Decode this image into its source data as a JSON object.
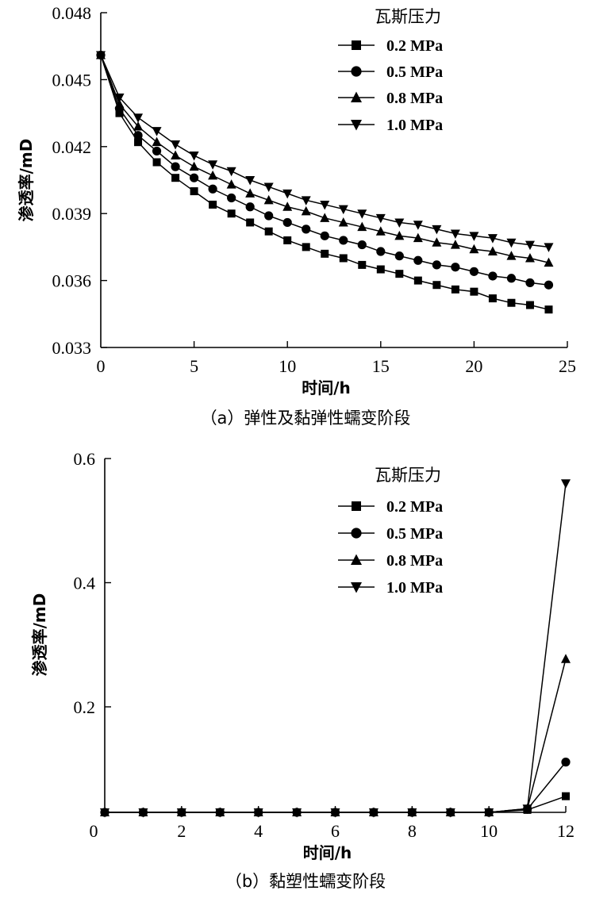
{
  "chart_data": [
    {
      "type": "line",
      "title": "",
      "caption": "（a）弹性及黏弹性蠕变阶段",
      "xlabel": "时间/h",
      "ylabel": "渗透率/mD",
      "xlim": [
        0,
        25
      ],
      "ylim": [
        0.033,
        0.048
      ],
      "xticks": [
        0,
        5,
        10,
        15,
        20,
        25
      ],
      "xtick_labels": [
        "0",
        "5",
        "10",
        "15",
        "20",
        "25"
      ],
      "yticks": [
        0.033,
        0.036,
        0.039,
        0.042,
        0.045,
        0.048
      ],
      "ytick_labels": [
        "0.033",
        "0.036",
        "0.039",
        "0.042",
        "0.045",
        "0.048"
      ],
      "grid": false,
      "legend_title": "瓦斯压力",
      "legend_position": "top-right",
      "x": [
        0,
        1,
        2,
        3,
        4,
        5,
        6,
        7,
        8,
        9,
        10,
        11,
        12,
        13,
        14,
        15,
        16,
        17,
        18,
        19,
        20,
        21,
        22,
        23,
        24
      ],
      "series": [
        {
          "name": "0.2 MPa",
          "marker": "square",
          "values": [
            0.0461,
            0.0435,
            0.0422,
            0.0413,
            0.0406,
            0.04,
            0.0394,
            0.039,
            0.0386,
            0.0382,
            0.0378,
            0.0375,
            0.0372,
            0.037,
            0.0367,
            0.0365,
            0.0363,
            0.036,
            0.0358,
            0.0356,
            0.0355,
            0.0352,
            0.035,
            0.0349,
            0.0347
          ]
        },
        {
          "name": "0.5 MPa",
          "marker": "circle",
          "values": [
            0.0461,
            0.0437,
            0.0425,
            0.0418,
            0.0411,
            0.0406,
            0.0401,
            0.0397,
            0.0393,
            0.0389,
            0.0386,
            0.0383,
            0.038,
            0.0378,
            0.0376,
            0.0373,
            0.0371,
            0.0369,
            0.0367,
            0.0366,
            0.0364,
            0.0362,
            0.0361,
            0.0359,
            0.0358
          ]
        },
        {
          "name": "0.8 MPa",
          "marker": "triangle-up",
          "values": [
            0.0461,
            0.0439,
            0.0429,
            0.0422,
            0.0416,
            0.0411,
            0.0407,
            0.0403,
            0.0399,
            0.0396,
            0.0393,
            0.0391,
            0.0388,
            0.0386,
            0.0384,
            0.0382,
            0.038,
            0.0379,
            0.0377,
            0.0376,
            0.0374,
            0.0373,
            0.0371,
            0.037,
            0.0368
          ]
        },
        {
          "name": "1.0 MPa",
          "marker": "triangle-down",
          "values": [
            0.0461,
            0.0442,
            0.0433,
            0.0427,
            0.0421,
            0.0416,
            0.0412,
            0.0409,
            0.0405,
            0.0402,
            0.0399,
            0.0396,
            0.0394,
            0.0392,
            0.039,
            0.0388,
            0.0386,
            0.0385,
            0.0383,
            0.0381,
            0.038,
            0.0379,
            0.0377,
            0.0376,
            0.0375
          ]
        }
      ]
    },
    {
      "type": "line",
      "title": "",
      "caption": "（b）黏塑性蠕变阶段",
      "xlabel": "时间/h",
      "ylabel": "渗透率/mD",
      "xlim": [
        0,
        12
      ],
      "ylim": [
        0.03,
        0.6
      ],
      "xticks": [
        0,
        2,
        4,
        6,
        8,
        10,
        12
      ],
      "xtick_labels": [
        "0",
        "2",
        "4",
        "6",
        "8",
        "10",
        "12"
      ],
      "yticks": [
        0.2,
        0.4,
        0.6
      ],
      "ytick_labels": [
        "0.2",
        "0.4",
        "0.6"
      ],
      "grid": false,
      "legend_title": "瓦斯压力",
      "legend_position": "top-right",
      "x": [
        0,
        1,
        2,
        3,
        4,
        5,
        6,
        7,
        8,
        9,
        10,
        11,
        12
      ],
      "series": [
        {
          "name": "0.2 MPa",
          "marker": "square",
          "values": [
            0.03,
            0.03,
            0.03,
            0.03,
            0.03,
            0.03,
            0.03,
            0.03,
            0.03,
            0.03,
            0.03,
            0.034,
            0.056
          ]
        },
        {
          "name": "0.5 MPa",
          "marker": "circle",
          "values": [
            0.03,
            0.03,
            0.03,
            0.03,
            0.03,
            0.03,
            0.03,
            0.03,
            0.03,
            0.03,
            0.03,
            0.035,
            0.111
          ]
        },
        {
          "name": "0.8 MPa",
          "marker": "triangle-up",
          "values": [
            0.03,
            0.03,
            0.03,
            0.03,
            0.03,
            0.03,
            0.03,
            0.03,
            0.03,
            0.03,
            0.03,
            0.036,
            0.277
          ]
        },
        {
          "name": "1.0 MPa",
          "marker": "triangle-down",
          "values": [
            0.03,
            0.03,
            0.03,
            0.03,
            0.03,
            0.03,
            0.03,
            0.03,
            0.03,
            0.03,
            0.03,
            0.036,
            0.56
          ]
        }
      ]
    }
  ]
}
